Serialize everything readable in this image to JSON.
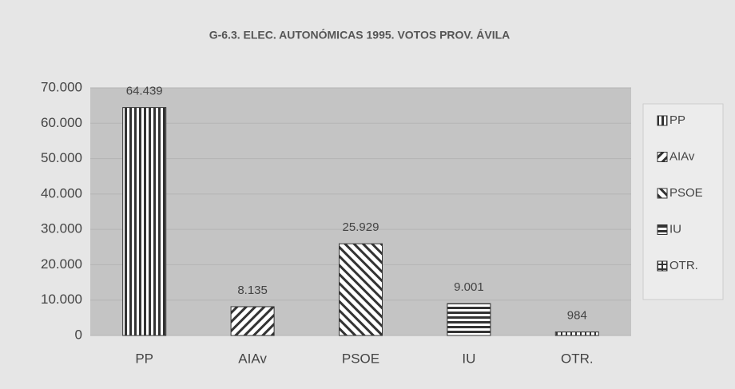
{
  "chart_data": {
    "type": "bar",
    "title": "G-6.3. ELEC. AUTONÓMICAS 1995. VOTOS PROV. ÁVILA",
    "categories": [
      "PP",
      "AIAv",
      "PSOE",
      "IU",
      "OTR."
    ],
    "values": [
      64439,
      8135,
      25929,
      9001,
      984
    ],
    "value_labels": [
      "64.439",
      "8.135",
      "25.929",
      "9.001",
      "984"
    ],
    "patterns": [
      "vertical",
      "diagonal-up",
      "diagonal-down",
      "horizontal",
      "grid"
    ],
    "ylim": [
      0,
      70000
    ],
    "yticks": [
      0,
      {
        "value": 10000,
        "label": "10.000"
      },
      {
        "value": 20000,
        "label": "20.000"
      },
      {
        "value": 30000,
        "label": "30.000"
      },
      {
        "value": 40000,
        "label": "40.000"
      },
      {
        "value": 50000,
        "label": "50.000"
      },
      {
        "value": 60000,
        "label": "60.000"
      },
      {
        "value": 70000,
        "label": "70.000"
      }
    ],
    "grid": true,
    "legend": "right"
  }
}
